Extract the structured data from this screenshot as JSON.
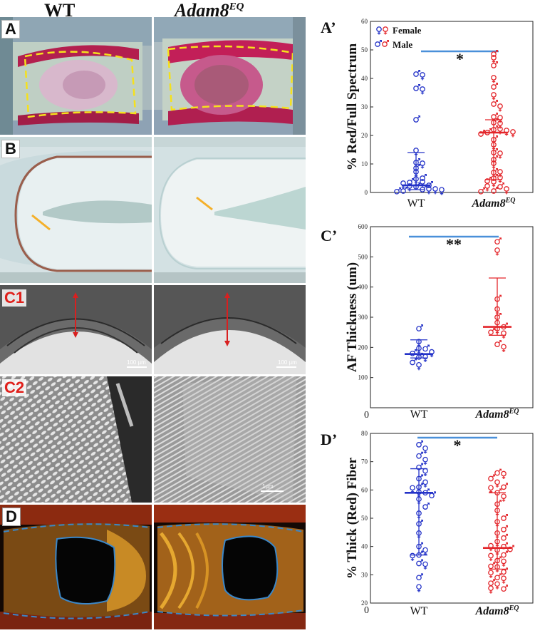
{
  "headers": {
    "wt": "WT",
    "mutant_base": "Adam8",
    "mutant_sup": "EQ"
  },
  "panel_labels": {
    "a": "A",
    "b": "B",
    "c1": "C1",
    "c2": "C2",
    "d": "D"
  },
  "scale_labels": {
    "c1_left": "100 µm",
    "c1_right": "100 µm",
    "c2_right": "1µm"
  },
  "colors": {
    "wt": "#2433c8",
    "mutant": "#e3262b",
    "bar": "#4a90d9",
    "dashed_outline": "#f5e11c",
    "d_outline": "#3b87c8"
  },
  "legend": {
    "female": "Female",
    "male": "Male"
  },
  "chart_data": [
    {
      "type": "scatter",
      "panel_label": "A’",
      "ylabel": "% Red/Full Spectrum",
      "ylim": [
        0,
        60
      ],
      "yticks": [
        0,
        10,
        20,
        30,
        40,
        50,
        60
      ],
      "categories": [
        "WT",
        "Adam8EQ"
      ],
      "significance": "*",
      "series": [
        {
          "category": "WT",
          "median": 2.5,
          "q1": 1.0,
          "q3": 14.0,
          "values": [
            41.5,
            40.5,
            36.5,
            35.5,
            25.5,
            14.0,
            10.5,
            9.5,
            8.5,
            6.5,
            5.0,
            4.0,
            3.5,
            3.0,
            2.5,
            2.5,
            2.0,
            1.5,
            1.0,
            0.5,
            0.5,
            0.5,
            0.3,
            0.2
          ]
        },
        {
          "category": "Adam8EQ",
          "median": 21.0,
          "q1": 4.5,
          "q3": 25.5,
          "values": [
            48.5,
            46.5,
            44.5,
            39.5,
            37.0,
            33.5,
            31.0,
            29.5,
            26.5,
            25.5,
            24.5,
            23.5,
            22.0,
            21.5,
            21.0,
            21.0,
            20.5,
            20.5,
            18.5,
            16.0,
            14.0,
            13.0,
            11.5,
            9.5,
            7.0,
            6.5,
            5.0,
            4.5,
            4.0,
            3.0,
            2.0,
            1.5,
            0.5,
            0.5,
            0.3
          ]
        }
      ]
    },
    {
      "type": "scatter",
      "panel_label": "C’",
      "ylabel": "AF Thickness (um)",
      "ylim": [
        0,
        600
      ],
      "yticks": [
        100,
        200,
        300,
        400,
        500,
        600
      ],
      "origin_label": "0",
      "categories": [
        "WT",
        "Adam8EQ"
      ],
      "significance": "**",
      "series": [
        {
          "category": "WT",
          "median": 178,
          "q1": 165,
          "q3": 225,
          "values": [
            262,
            212,
            195,
            190,
            180,
            178,
            168,
            162,
            150,
            135
          ]
        },
        {
          "category": "Adam8EQ",
          "median": 268,
          "q1": 240,
          "q3": 430,
          "values": [
            550,
            515,
            360,
            320,
            300,
            275,
            268,
            255,
            250,
            240,
            210,
            195
          ]
        }
      ]
    },
    {
      "type": "scatter",
      "panel_label": "D’",
      "ylabel": "% Thick (Red) Fiber",
      "ylim": [
        20,
        80
      ],
      "yticks": [
        20,
        30,
        40,
        50,
        60,
        70,
        80
      ],
      "origin_label": "0",
      "categories": [
        "WT",
        "Adam8EQ"
      ],
      "significance": "*",
      "series": [
        {
          "category": "WT",
          "median": 59,
          "q1": 37,
          "q3": 67.5,
          "values": [
            76,
            74,
            72,
            70,
            68,
            66,
            64,
            62,
            61,
            60,
            59,
            58.5,
            58,
            56,
            54,
            51,
            48,
            44,
            40,
            38,
            37,
            36,
            34,
            33,
            29,
            25
          ]
        },
        {
          "category": "Adam8EQ",
          "median": 39.5,
          "q1": 32,
          "q3": 59,
          "values": [
            66,
            65,
            64,
            62,
            61,
            60,
            59,
            57,
            55,
            52,
            50,
            48,
            46,
            44,
            43,
            41,
            40,
            39.5,
            39,
            38,
            37,
            36,
            35,
            34,
            33,
            32,
            31,
            30,
            29,
            28,
            27,
            26,
            25,
            24.5
          ]
        }
      ]
    }
  ]
}
